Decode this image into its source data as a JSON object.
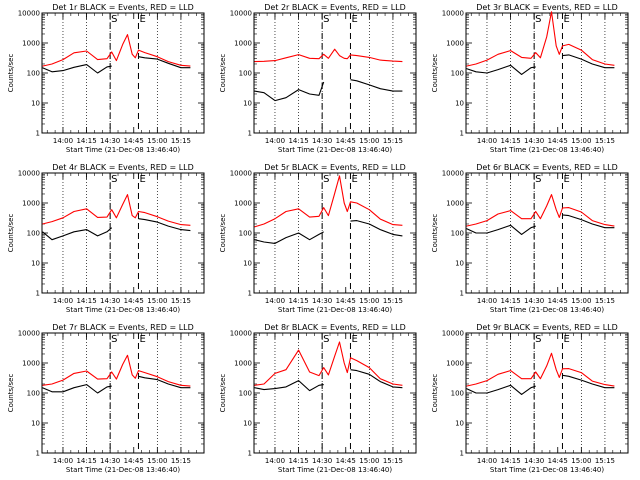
{
  "chart_data": {
    "type": "line",
    "layout": "3x3 grid of panels",
    "y_scale": "log",
    "ylim": [
      1,
      10000
    ],
    "y_ticks": [
      "1",
      "10",
      "100",
      "1000",
      "10000"
    ],
    "x_ticks": [
      "14:00",
      "14:15",
      "14:30",
      "14:45",
      "15:00",
      "15:15"
    ],
    "xlabel": "Start Time (21-Dec-08 13:46:40)",
    "ylabel": "Counts/sec",
    "dotted_vertical_lines_at": [
      "14:00",
      "14:15",
      "14:30",
      "15:00",
      "15:15"
    ],
    "dashed_vertical_lines": [
      {
        "label": "S",
        "at": "14:30"
      },
      {
        "label": "E",
        "at": "14:48"
      }
    ],
    "series_colors": {
      "events": "#000000",
      "lld": "#ff0000"
    },
    "x": [
      "13:47",
      "13:53",
      "14:00",
      "14:07",
      "14:15",
      "14:22",
      "14:28",
      "14:31",
      "14:34",
      "14:38",
      "14:41",
      "14:44",
      "14:46",
      "14:48",
      "14:52",
      "15:00",
      "15:07",
      "15:15",
      "15:21"
    ],
    "panels": [
      {
        "title": "Det 1r BLACK = Events, RED = LLD",
        "lld": [
          170,
          200,
          280,
          470,
          540,
          280,
          300,
          500,
          260,
          900,
          1900,
          420,
          320,
          580,
          480,
          350,
          240,
          180,
          170
        ],
        "events": [
          150,
          110,
          120,
          155,
          190,
          100,
          160,
          170,
          null,
          null,
          null,
          null,
          null,
          350,
          320,
          290,
          210,
          150,
          150
        ]
      },
      {
        "title": "Det 2r BLACK = Events, RED = LLD",
        "lld": [
          240,
          245,
          260,
          320,
          410,
          310,
          300,
          420,
          310,
          620,
          380,
          310,
          300,
          400,
          380,
          330,
          270,
          250,
          240
        ],
        "events": [
          25,
          22,
          12,
          15,
          28,
          20,
          18,
          50,
          null,
          null,
          null,
          null,
          null,
          60,
          55,
          40,
          30,
          25,
          25
        ]
      },
      {
        "title": "Det 3r BLACK = Events, RED = LLD",
        "lld": [
          170,
          200,
          270,
          420,
          560,
          330,
          310,
          480,
          320,
          1600,
          11000,
          800,
          420,
          800,
          900,
          580,
          280,
          200,
          180
        ],
        "events": [
          140,
          110,
          100,
          130,
          180,
          90,
          150,
          160,
          null,
          null,
          null,
          null,
          null,
          380,
          400,
          290,
          200,
          150,
          150
        ]
      },
      {
        "title": "Det 4r BLACK = Events, RED = LLD",
        "lld": [
          200,
          240,
          320,
          520,
          640,
          330,
          340,
          600,
          320,
          900,
          1900,
          380,
          320,
          520,
          480,
          350,
          250,
          190,
          180
        ],
        "events": [
          110,
          60,
          80,
          110,
          130,
          80,
          110,
          150,
          null,
          null,
          null,
          null,
          null,
          300,
          280,
          230,
          170,
          130,
          120
        ]
      },
      {
        "title": "Det 5r BLACK = Events, RED = LLD",
        "lld": [
          160,
          200,
          300,
          520,
          640,
          340,
          360,
          700,
          380,
          2100,
          8000,
          1000,
          520,
          1100,
          1000,
          600,
          290,
          190,
          180
        ],
        "events": [
          60,
          50,
          45,
          70,
          100,
          60,
          90,
          110,
          null,
          null,
          null,
          null,
          null,
          250,
          260,
          200,
          130,
          90,
          80
        ]
      },
      {
        "title": "Det 6r BLACK = Events, RED = LLD",
        "lld": [
          170,
          200,
          260,
          430,
          560,
          300,
          300,
          520,
          300,
          800,
          1900,
          600,
          330,
          680,
          700,
          500,
          260,
          190,
          170
        ],
        "events": [
          140,
          100,
          100,
          130,
          180,
          90,
          150,
          170,
          null,
          null,
          null,
          null,
          null,
          400,
          380,
          280,
          200,
          150,
          150
        ]
      },
      {
        "title": "Det 7r BLACK = Events, RED = LLD",
        "lld": [
          180,
          200,
          270,
          450,
          540,
          290,
          300,
          500,
          290,
          900,
          1800,
          400,
          310,
          560,
          480,
          350,
          240,
          180,
          170
        ],
        "events": [
          150,
          110,
          110,
          150,
          190,
          100,
          160,
          170,
          null,
          null,
          null,
          null,
          null,
          360,
          320,
          280,
          200,
          150,
          150
        ]
      },
      {
        "title": "Det 8r BLACK = Events, RED = LLD",
        "lld": [
          180,
          200,
          450,
          600,
          2700,
          500,
          380,
          700,
          400,
          1700,
          5000,
          1000,
          480,
          1500,
          1200,
          700,
          300,
          200,
          180
        ],
        "events": [
          150,
          130,
          140,
          160,
          260,
          120,
          180,
          190,
          null,
          null,
          null,
          null,
          null,
          600,
          560,
          420,
          240,
          160,
          150
        ]
      },
      {
        "title": "Det 9r BLACK = Events, RED = LLD",
        "lld": [
          170,
          200,
          260,
          420,
          560,
          300,
          300,
          500,
          300,
          800,
          2100,
          600,
          330,
          640,
          650,
          480,
          250,
          190,
          170
        ],
        "events": [
          140,
          100,
          100,
          130,
          180,
          90,
          150,
          170,
          null,
          null,
          null,
          null,
          null,
          390,
          360,
          270,
          200,
          150,
          150
        ]
      }
    ]
  }
}
